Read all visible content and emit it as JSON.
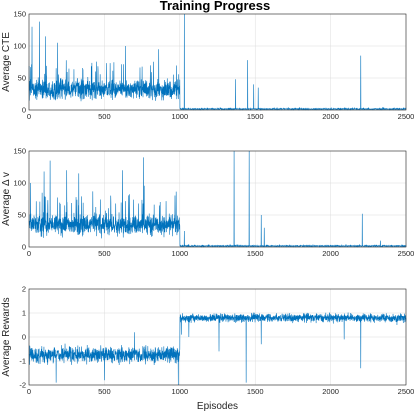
{
  "figure": {
    "title": "Training Progress"
  },
  "colors": {
    "series": "#0072bd",
    "grid": "#dcdcdc",
    "axis": "#262626"
  },
  "chart_data": [
    {
      "type": "line",
      "id": "cte",
      "xlabel": "",
      "ylabel": "Average CTE",
      "xlim": [
        0,
        2500
      ],
      "ylim": [
        0,
        150
      ],
      "xticks": [
        0,
        500,
        1000,
        1500,
        2000,
        2500
      ],
      "yticks": [
        0,
        50,
        100,
        150
      ],
      "grid": true,
      "series": [
        {
          "segments": [
            {
              "x_range": [
                1,
                1000
              ],
              "baseline": 32,
              "noise": 22,
              "min": 3,
              "max": 150
            },
            {
              "x_range": [
                1001,
                2500
              ],
              "baseline": 1.5,
              "noise": 1.2,
              "min": 0,
              "max": 150
            }
          ],
          "spikes": [
            [
              20,
              130
            ],
            [
              70,
              138
            ],
            [
              110,
              115
            ],
            [
              190,
              105
            ],
            [
              640,
              100
            ],
            [
              860,
              95
            ],
            [
              1030,
              150
            ],
            [
              1370,
              48
            ],
            [
              1450,
              78
            ],
            [
              1490,
              40
            ],
            [
              1520,
              35
            ],
            [
              2200,
              85
            ]
          ]
        }
      ]
    },
    {
      "type": "line",
      "id": "dv",
      "xlabel": "",
      "ylabel": "Average Δ v",
      "xlim": [
        0,
        2500
      ],
      "ylim": [
        0,
        150
      ],
      "xticks": [
        0,
        500,
        1000,
        1500,
        2000,
        2500
      ],
      "yticks": [
        0,
        50,
        100,
        150
      ],
      "grid": true,
      "series": [
        {
          "segments": [
            {
              "x_range": [
                1,
                1000
              ],
              "baseline": 35,
              "noise": 24,
              "min": 3,
              "max": 150
            },
            {
              "x_range": [
                1001,
                2500
              ],
              "baseline": 1.5,
              "noise": 1.2,
              "min": 0,
              "max": 150
            }
          ],
          "spikes": [
            [
              10,
              100
            ],
            [
              100,
              118
            ],
            [
              140,
              135
            ],
            [
              250,
              120
            ],
            [
              330,
              115
            ],
            [
              620,
              120
            ],
            [
              760,
              140
            ],
            [
              1030,
              25
            ],
            [
              1360,
              150
            ],
            [
              1460,
              150
            ],
            [
              1540,
              50
            ],
            [
              1560,
              30
            ],
            [
              2210,
              52
            ],
            [
              2330,
              10
            ]
          ]
        }
      ]
    },
    {
      "type": "line",
      "id": "rewards",
      "xlabel": "Episodes",
      "ylabel": "Average Rewards",
      "xlim": [
        0,
        2500
      ],
      "ylim": [
        -2,
        2
      ],
      "xticks": [
        0,
        500,
        1000,
        1500,
        2000,
        2500
      ],
      "yticks": [
        -2,
        -1,
        0,
        1,
        2
      ],
      "grid": true,
      "series": [
        {
          "segments": [
            {
              "x_range": [
                1,
                1000
              ],
              "baseline": -0.75,
              "noise": 0.38,
              "min": -2,
              "max": 0.3
            },
            {
              "x_range": [
                1001,
                2500
              ],
              "baseline": 0.8,
              "noise": 0.2,
              "min": -2,
              "max": 1.3
            }
          ],
          "spikes": [
            [
              180,
              -1.9
            ],
            [
              500,
              -1.8
            ],
            [
              700,
              0.2
            ],
            [
              990,
              -2.0
            ],
            [
              1010,
              0.1
            ],
            [
              1060,
              0.0
            ],
            [
              1260,
              -0.6
            ],
            [
              1440,
              -1.9
            ],
            [
              1540,
              -0.3
            ],
            [
              2090,
              -0.1
            ],
            [
              2200,
              -1.3
            ],
            [
              2440,
              0.5
            ]
          ]
        }
      ]
    }
  ]
}
